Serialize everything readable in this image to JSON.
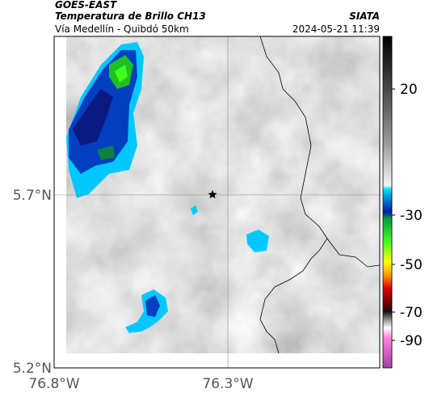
{
  "header": {
    "product": "GOES-EAST",
    "title": "Temperatura de Brillo CH13",
    "route": "Vía Medellín - Quibdó 50km",
    "source": "SIATA",
    "datetime": "2024-05-21 11:39"
  },
  "map": {
    "lat_labels": [
      "5.7°N",
      "5.2°N"
    ],
    "lon_labels": [
      "76.8°W",
      "76.3°W"
    ]
  },
  "colorbar": {
    "labels": [
      "20",
      "-30",
      "-50",
      "-70",
      "-90"
    ]
  }
}
